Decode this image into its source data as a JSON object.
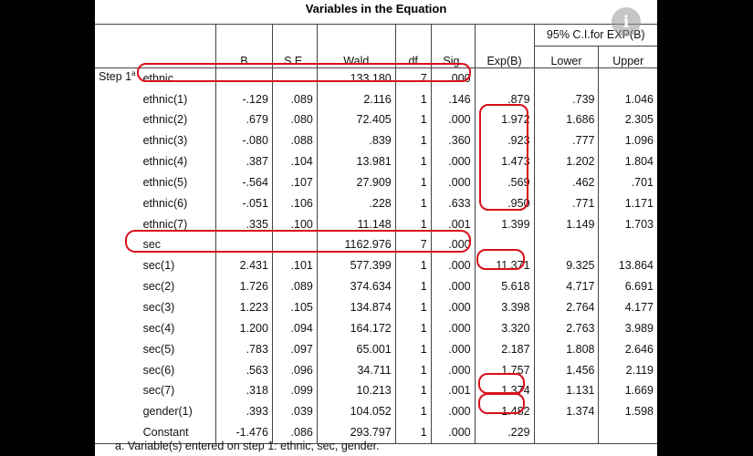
{
  "title": "Variables in the Equation",
  "headers": {
    "b": "B",
    "se": "S.E.",
    "wald": "Wald",
    "df": "df",
    "sig": "Sig.",
    "expb": "Exp(B)",
    "ci": "95% C.I.for EXP(B)",
    "lower": "Lower",
    "upper": "Upper"
  },
  "step_label": "Step 1",
  "step_sup": "a",
  "rows": [
    {
      "name": "ethnic",
      "b": "",
      "se": "",
      "wald": "133.180",
      "df": "7",
      "sig": ".000",
      "exp": "",
      "lower": "",
      "upper": ""
    },
    {
      "name": "ethnic(1)",
      "b": "-.129",
      "se": ".089",
      "wald": "2.116",
      "df": "1",
      "sig": ".146",
      "exp": ".879",
      "lower": ".739",
      "upper": "1.046"
    },
    {
      "name": "ethnic(2)",
      "b": ".679",
      "se": ".080",
      "wald": "72.405",
      "df": "1",
      "sig": ".000",
      "exp": "1.972",
      "lower": "1.686",
      "upper": "2.305"
    },
    {
      "name": "ethnic(3)",
      "b": "-.080",
      "se": ".088",
      "wald": ".839",
      "df": "1",
      "sig": ".360",
      "exp": ".923",
      "lower": ".777",
      "upper": "1.096"
    },
    {
      "name": "ethnic(4)",
      "b": ".387",
      "se": ".104",
      "wald": "13.981",
      "df": "1",
      "sig": ".000",
      "exp": "1.473",
      "lower": "1.202",
      "upper": "1.804"
    },
    {
      "name": "ethnic(5)",
      "b": "-.564",
      "se": ".107",
      "wald": "27.909",
      "df": "1",
      "sig": ".000",
      "exp": ".569",
      "lower": ".462",
      "upper": ".701"
    },
    {
      "name": "ethnic(6)",
      "b": "-.051",
      "se": ".106",
      "wald": ".228",
      "df": "1",
      "sig": ".633",
      "exp": ".950",
      "lower": ".771",
      "upper": "1.171"
    },
    {
      "name": "ethnic(7)",
      "b": ".335",
      "se": ".100",
      "wald": "11.148",
      "df": "1",
      "sig": ".001",
      "exp": "1.399",
      "lower": "1.149",
      "upper": "1.703"
    },
    {
      "name": "sec",
      "b": "",
      "se": "",
      "wald": "1162.976",
      "df": "7",
      "sig": ".000",
      "exp": "",
      "lower": "",
      "upper": ""
    },
    {
      "name": "sec(1)",
      "b": "2.431",
      "se": ".101",
      "wald": "577.399",
      "df": "1",
      "sig": ".000",
      "exp": "11.371",
      "lower": "9.325",
      "upper": "13.864"
    },
    {
      "name": "sec(2)",
      "b": "1.726",
      "se": ".089",
      "wald": "374.634",
      "df": "1",
      "sig": ".000",
      "exp": "5.618",
      "lower": "4.717",
      "upper": "6.691"
    },
    {
      "name": "sec(3)",
      "b": "1.223",
      "se": ".105",
      "wald": "134.874",
      "df": "1",
      "sig": ".000",
      "exp": "3.398",
      "lower": "2.764",
      "upper": "4.177"
    },
    {
      "name": "sec(4)",
      "b": "1.200",
      "se": ".094",
      "wald": "164.172",
      "df": "1",
      "sig": ".000",
      "exp": "3.320",
      "lower": "2.763",
      "upper": "3.989"
    },
    {
      "name": "sec(5)",
      "b": ".783",
      "se": ".097",
      "wald": "65.001",
      "df": "1",
      "sig": ".000",
      "exp": "2.187",
      "lower": "1.808",
      "upper": "2.646"
    },
    {
      "name": "sec(6)",
      "b": ".563",
      "se": ".096",
      "wald": "34.711",
      "df": "1",
      "sig": ".000",
      "exp": "1.757",
      "lower": "1.456",
      "upper": "2.119"
    },
    {
      "name": "sec(7)",
      "b": ".318",
      "se": ".099",
      "wald": "10.213",
      "df": "1",
      "sig": ".001",
      "exp": "1.374",
      "lower": "1.131",
      "upper": "1.669"
    },
    {
      "name": "gender(1)",
      "b": ".393",
      "se": ".039",
      "wald": "104.052",
      "df": "1",
      "sig": ".000",
      "exp": "1.482",
      "lower": "1.374",
      "upper": "1.598"
    },
    {
      "name": "Constant",
      "b": "-1.476",
      "se": ".086",
      "wald": "293.797",
      "df": "1",
      "sig": ".000",
      "exp": ".229",
      "lower": "",
      "upper": ""
    }
  ],
  "footnote": "a. Variable(s) entered on step 1: ethnic, sec, gender.",
  "highlight_color": "#d8101a",
  "overlay_icon": "info-icon"
}
